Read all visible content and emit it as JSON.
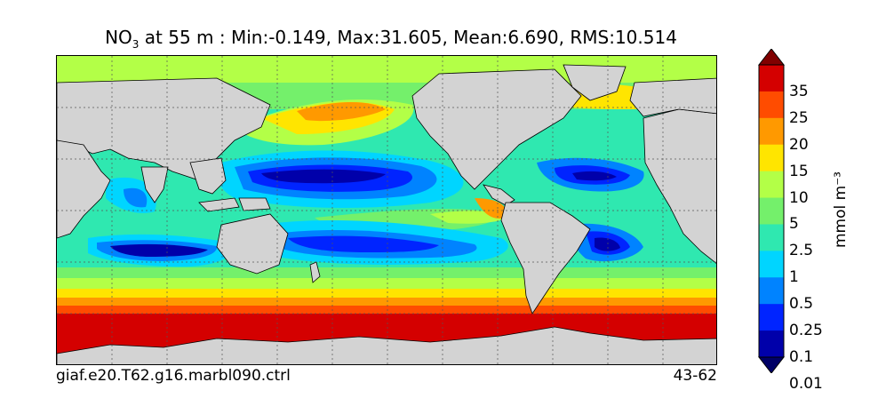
{
  "title": {
    "prefix": "NO",
    "subscript": "3",
    "rest": " at 55 m : Min:-0.149, Max:31.605, Mean:6.690, RMS:10.514"
  },
  "case_name": "giaf.e20.T62.g16.marbl090.ctrl",
  "year_range": "43-62",
  "colorbar": {
    "unit_label": "mmol m⁻³",
    "levels": [
      "35",
      "25",
      "20",
      "15",
      "10",
      "5",
      "2.5",
      "1",
      "0.5",
      "0.25",
      "0.1",
      "0.01"
    ],
    "colors_top_to_bottom": [
      "#800000",
      "#d40000",
      "#ff4c00",
      "#ff9900",
      "#ffe500",
      "#b3ff47",
      "#74f06b",
      "#2fe8b0",
      "#00d5ff",
      "#0083ff",
      "#0024ff",
      "#0000aa",
      "#000066"
    ]
  },
  "map": {
    "land_color": "#d3d3d3",
    "ice_color": "#ffffff",
    "gridlines": "dotted"
  }
}
